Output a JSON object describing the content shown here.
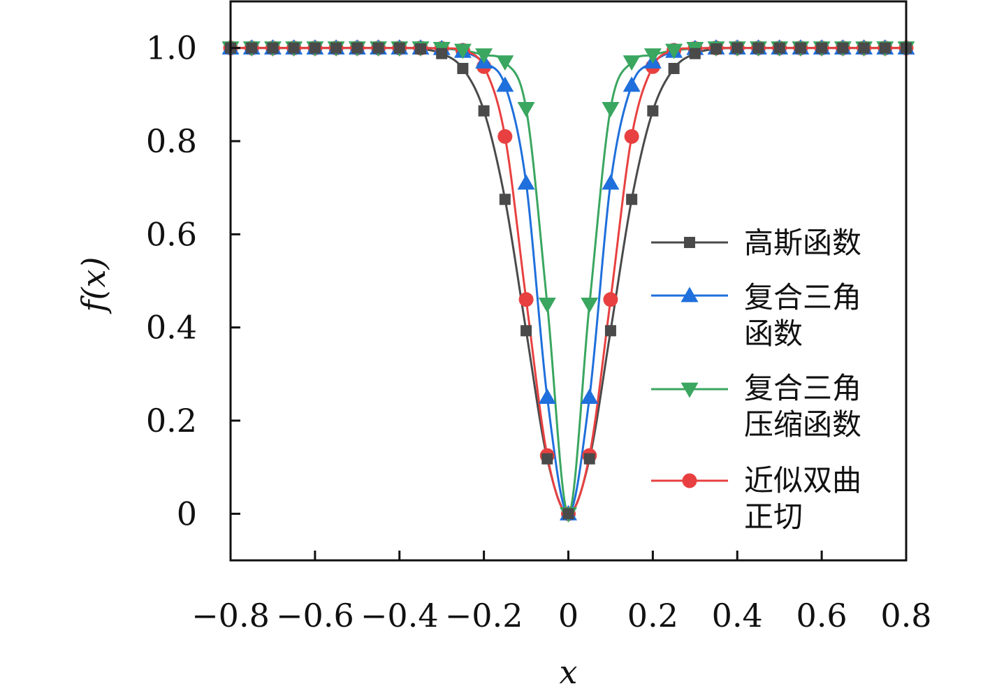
{
  "chart_data": {
    "type": "line",
    "xlabel": "x",
    "ylabel": "f(x)",
    "xlim": [
      -0.8,
      0.8
    ],
    "ylim": [
      -0.1,
      1.1
    ],
    "xticks": [
      -0.8,
      -0.6,
      -0.4,
      -0.2,
      0,
      0.2,
      0.4,
      0.6,
      0.8
    ],
    "xtick_labels": [
      "−0.8",
      "−0.6",
      "−0.4",
      "−0.2",
      "0",
      "0.2",
      "0.4",
      "0.6",
      "0.8"
    ],
    "yticks": [
      0,
      0.2,
      0.4,
      0.6,
      0.8,
      1.0
    ],
    "ytick_labels": [
      "0",
      "0.2",
      "0.4",
      "0.6",
      "0.8",
      "1.0"
    ],
    "grid": false,
    "legend_position": "right-middle",
    "x": [
      -0.8,
      -0.75,
      -0.7,
      -0.65,
      -0.6,
      -0.55,
      -0.5,
      -0.45,
      -0.4,
      -0.35,
      -0.3,
      -0.25,
      -0.2,
      -0.15,
      -0.1,
      -0.05,
      0,
      0.05,
      0.1,
      0.15,
      0.2,
      0.25,
      0.3,
      0.35,
      0.4,
      0.45,
      0.5,
      0.55,
      0.6,
      0.65,
      0.7,
      0.75,
      0.8
    ],
    "series": [
      {
        "name": "高斯函数",
        "legend_lines": [
          "高斯函数"
        ],
        "color": "#4a4a4a",
        "marker": "square",
        "values": [
          1,
          1,
          1,
          1,
          1,
          1,
          1,
          1,
          1,
          0.998,
          0.988,
          0.956,
          0.865,
          0.675,
          0.393,
          0.118,
          0,
          0.118,
          0.393,
          0.675,
          0.865,
          0.956,
          0.988,
          0.998,
          1,
          1,
          1,
          1,
          1,
          1,
          1,
          1,
          1
        ]
      },
      {
        "name": "复合三角函数",
        "legend_lines": [
          "复合三角",
          "函数"
        ],
        "color": "#1f6fdc",
        "marker": "triangle-up",
        "values": [
          1,
          1,
          1,
          1,
          1,
          1,
          1,
          1,
          1,
          1,
          0.999,
          0.993,
          0.97,
          0.92,
          0.71,
          0.25,
          0,
          0.25,
          0.71,
          0.92,
          0.97,
          0.993,
          0.999,
          1,
          1,
          1,
          1,
          1,
          1,
          1,
          1,
          1,
          1
        ]
      },
      {
        "name": "复合三角压缩函数",
        "legend_lines": [
          "复合三角",
          "压缩函数"
        ],
        "color": "#3aa660",
        "marker": "triangle-down",
        "values": [
          1,
          1,
          1,
          1,
          1,
          1,
          1,
          1,
          1,
          1,
          0.999,
          0.995,
          0.985,
          0.97,
          0.87,
          0.45,
          0,
          0.45,
          0.87,
          0.97,
          0.985,
          0.995,
          0.999,
          1,
          1,
          1,
          1,
          1,
          1,
          1,
          1,
          1,
          1
        ]
      },
      {
        "name": "近似双曲正切",
        "legend_lines": [
          "近似双曲",
          "正切"
        ],
        "color": "#e84040",
        "marker": "circle",
        "values": [
          1,
          1,
          1,
          1,
          1,
          1,
          1,
          1,
          1,
          1,
          0.999,
          0.995,
          0.96,
          0.81,
          0.46,
          0.125,
          0,
          0.125,
          0.46,
          0.81,
          0.96,
          0.995,
          0.999,
          1,
          1,
          1,
          1,
          1,
          1,
          1,
          1,
          1,
          1
        ]
      }
    ]
  }
}
